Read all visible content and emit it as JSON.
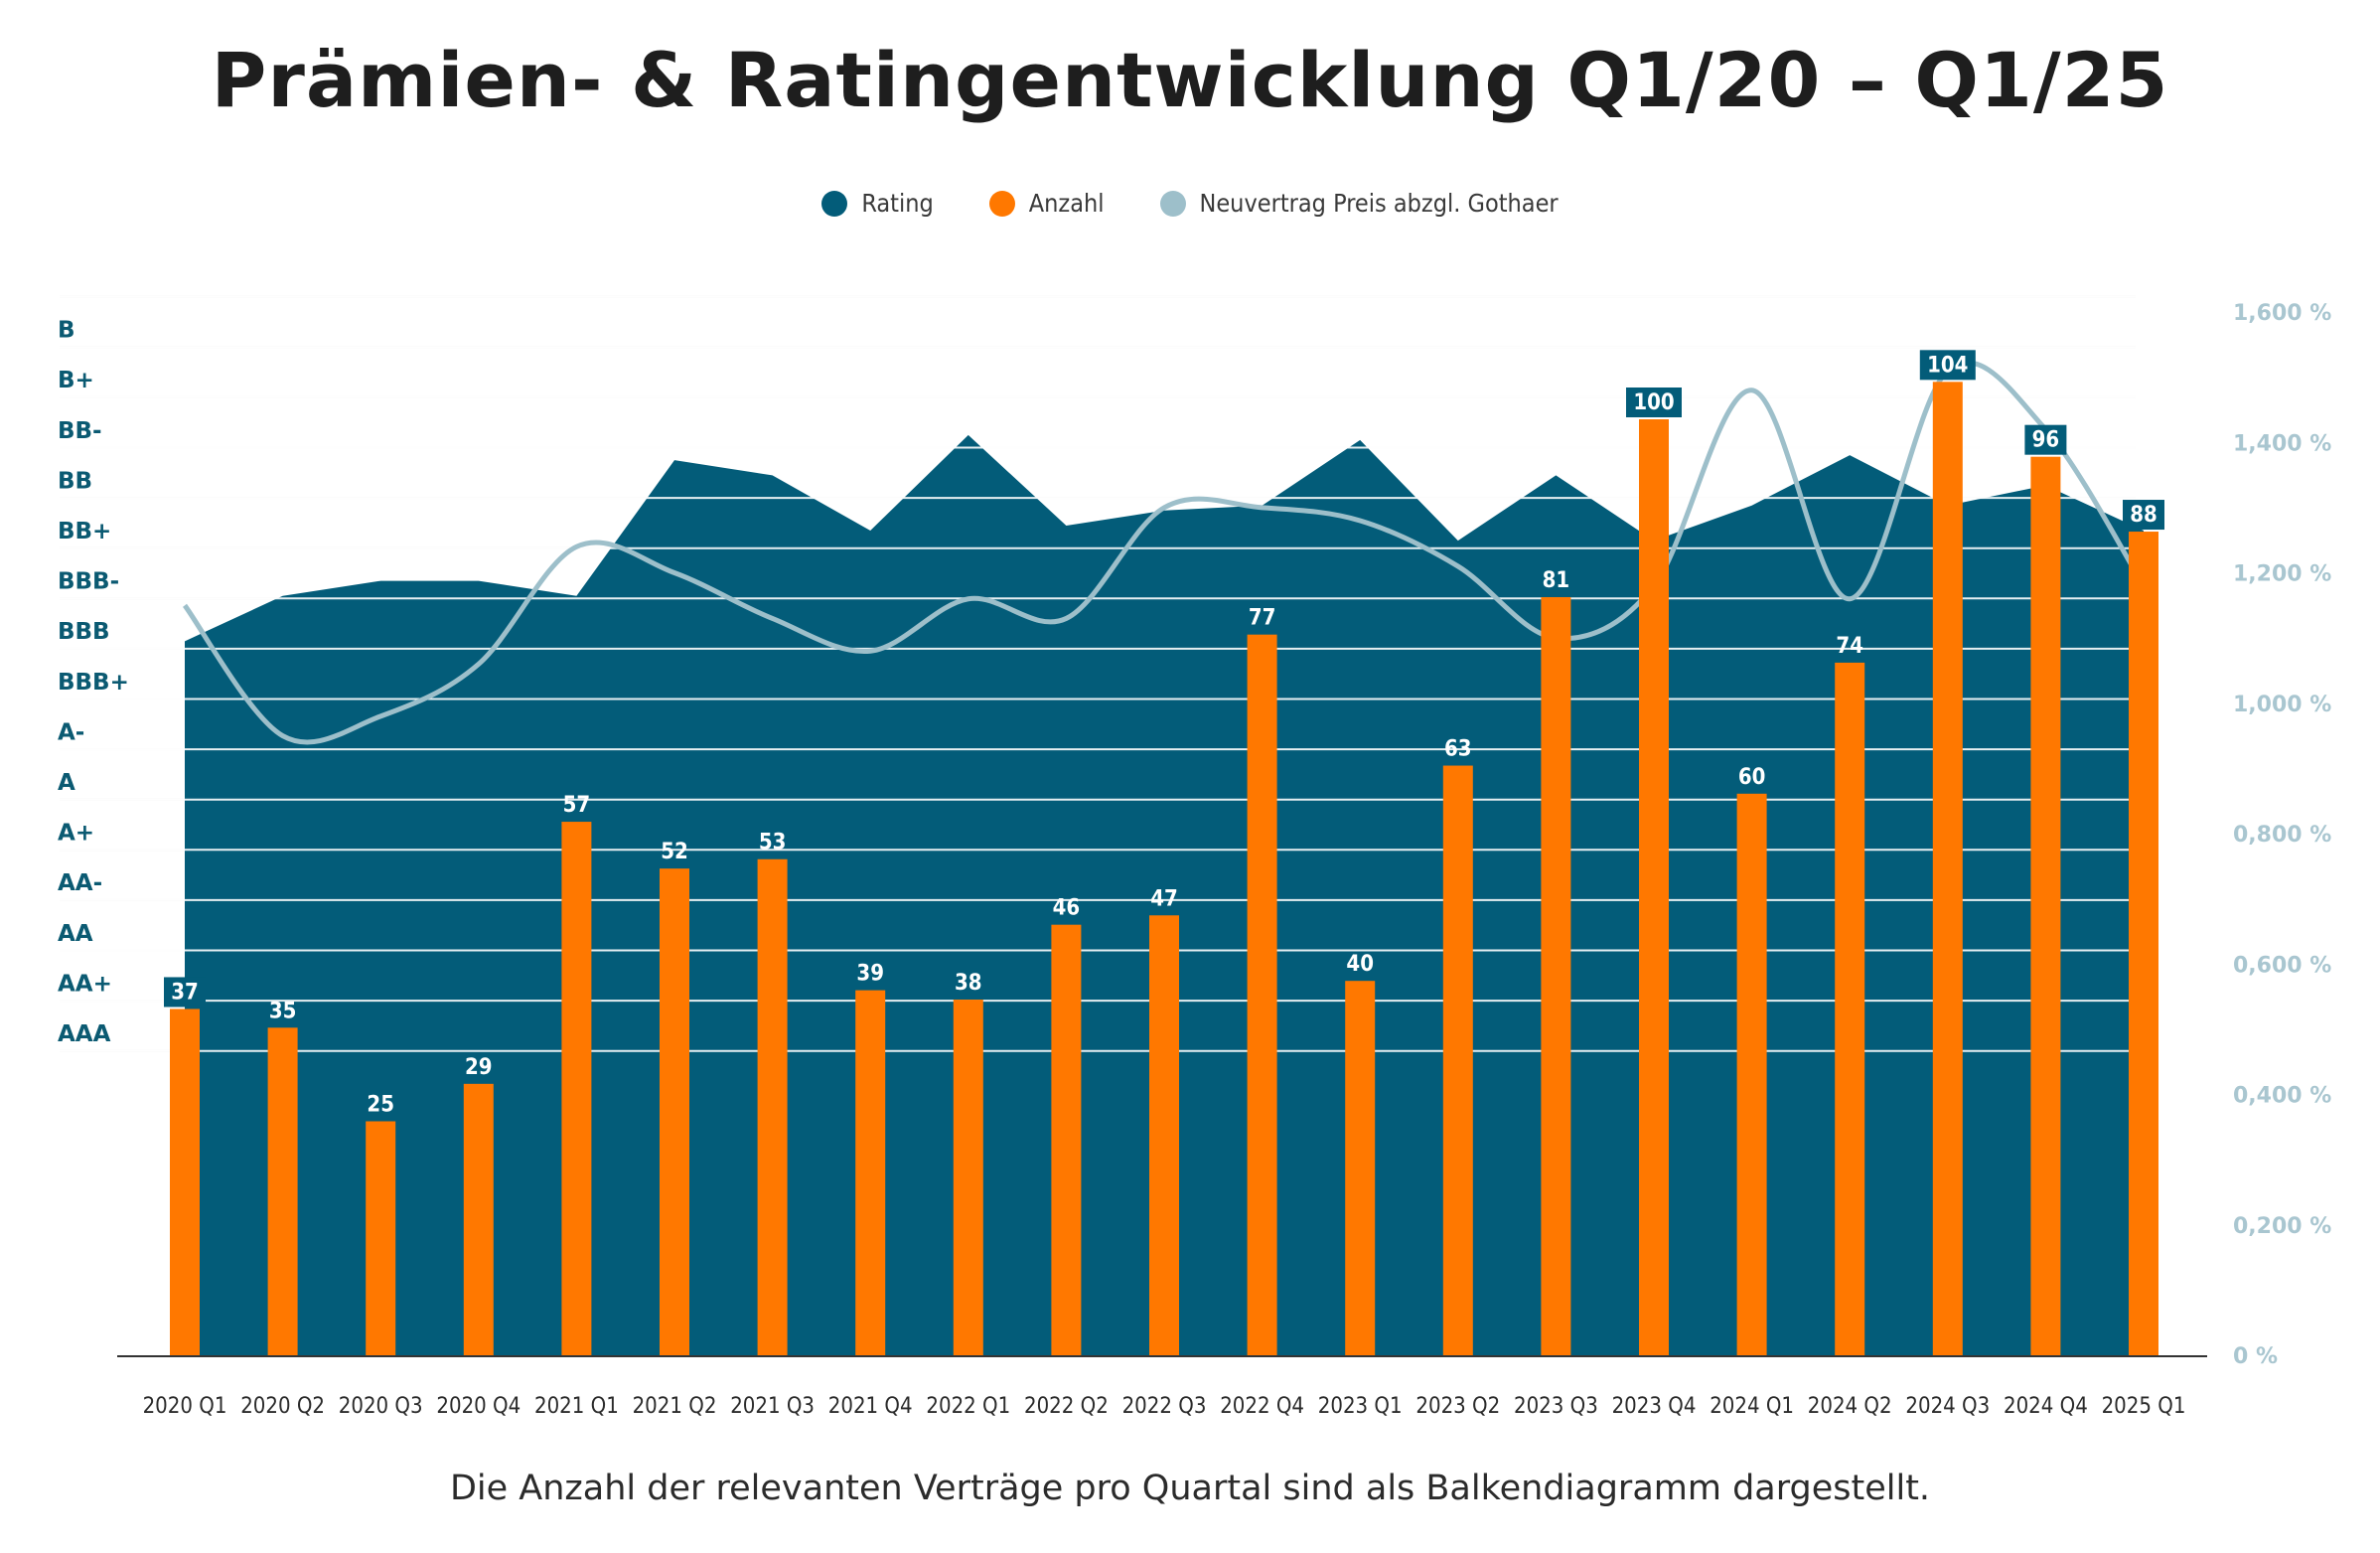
{
  "chart_data": {
    "type": "bar",
    "title": "Prämien- & Ratingentwicklung Q1/20 – Q1/25",
    "caption": "Die Anzahl der relevanten Verträge pro Quartal sind als Balkendiagramm dargestellt.",
    "categories": [
      "2020 Q1",
      "2020 Q2",
      "2020 Q3",
      "2020 Q4",
      "2021 Q1",
      "2021 Q2",
      "2021 Q3",
      "2021 Q4",
      "2022 Q1",
      "2022 Q2",
      "2022 Q3",
      "2022 Q4",
      "2023 Q1",
      "2023 Q2",
      "2023 Q3",
      "2023 Q4",
      "2024 Q1",
      "2024 Q2",
      "2024 Q3",
      "2024 Q4",
      "2025 Q1"
    ],
    "rating_axis": [
      "AAA",
      "AA+",
      "AA",
      "AA-",
      "A+",
      "A",
      "A-",
      "BBB+",
      "BBB",
      "BBB-",
      "BB+",
      "BB",
      "BB-",
      "B+",
      "B"
    ],
    "pct_axis_ticks": [
      "0 %",
      "0,200 %",
      "0,400 %",
      "0,600 %",
      "0,800 %",
      "1,000 %",
      "1,200 %",
      "1,400 %",
      "1,600 %"
    ],
    "pct_axis_range": [
      0,
      1.6
    ],
    "series": [
      {
        "name": "Rating",
        "kind": "area",
        "color": "#035c79",
        "values": [
          7.8,
          8.7,
          9.0,
          9.0,
          8.7,
          11.4,
          11.1,
          10.0,
          11.9,
          10.1,
          10.4,
          10.5,
          11.8,
          9.8,
          11.1,
          9.8,
          10.5,
          11.5,
          10.5,
          10.9,
          10.0
        ]
      },
      {
        "name": "Anzahl",
        "kind": "bar",
        "color": "#ff7800",
        "values": [
          37,
          35,
          25,
          29,
          57,
          52,
          53,
          39,
          38,
          46,
          47,
          77,
          40,
          63,
          81,
          100,
          60,
          74,
          104,
          96,
          88
        ],
        "labels": [
          "37",
          "35",
          "25",
          "29",
          "57",
          "52",
          "53",
          "39",
          "38",
          "46",
          "47",
          "77",
          "40",
          "63",
          "81",
          "100",
          "60",
          "74",
          "104",
          "96",
          "88"
        ]
      },
      {
        "name": "Neuvertrag Preis abzgl. Gothaer",
        "kind": "line",
        "color": "#9dbfca",
        "values": [
          1.15,
          0.95,
          0.98,
          1.06,
          1.24,
          1.2,
          1.13,
          1.08,
          1.16,
          1.13,
          1.3,
          1.3,
          1.28,
          1.21,
          1.1,
          1.18,
          1.48,
          1.16,
          1.51,
          1.42,
          1.18
        ]
      }
    ],
    "highlighted_labels": [
      0,
      15,
      18,
      19,
      20
    ]
  }
}
